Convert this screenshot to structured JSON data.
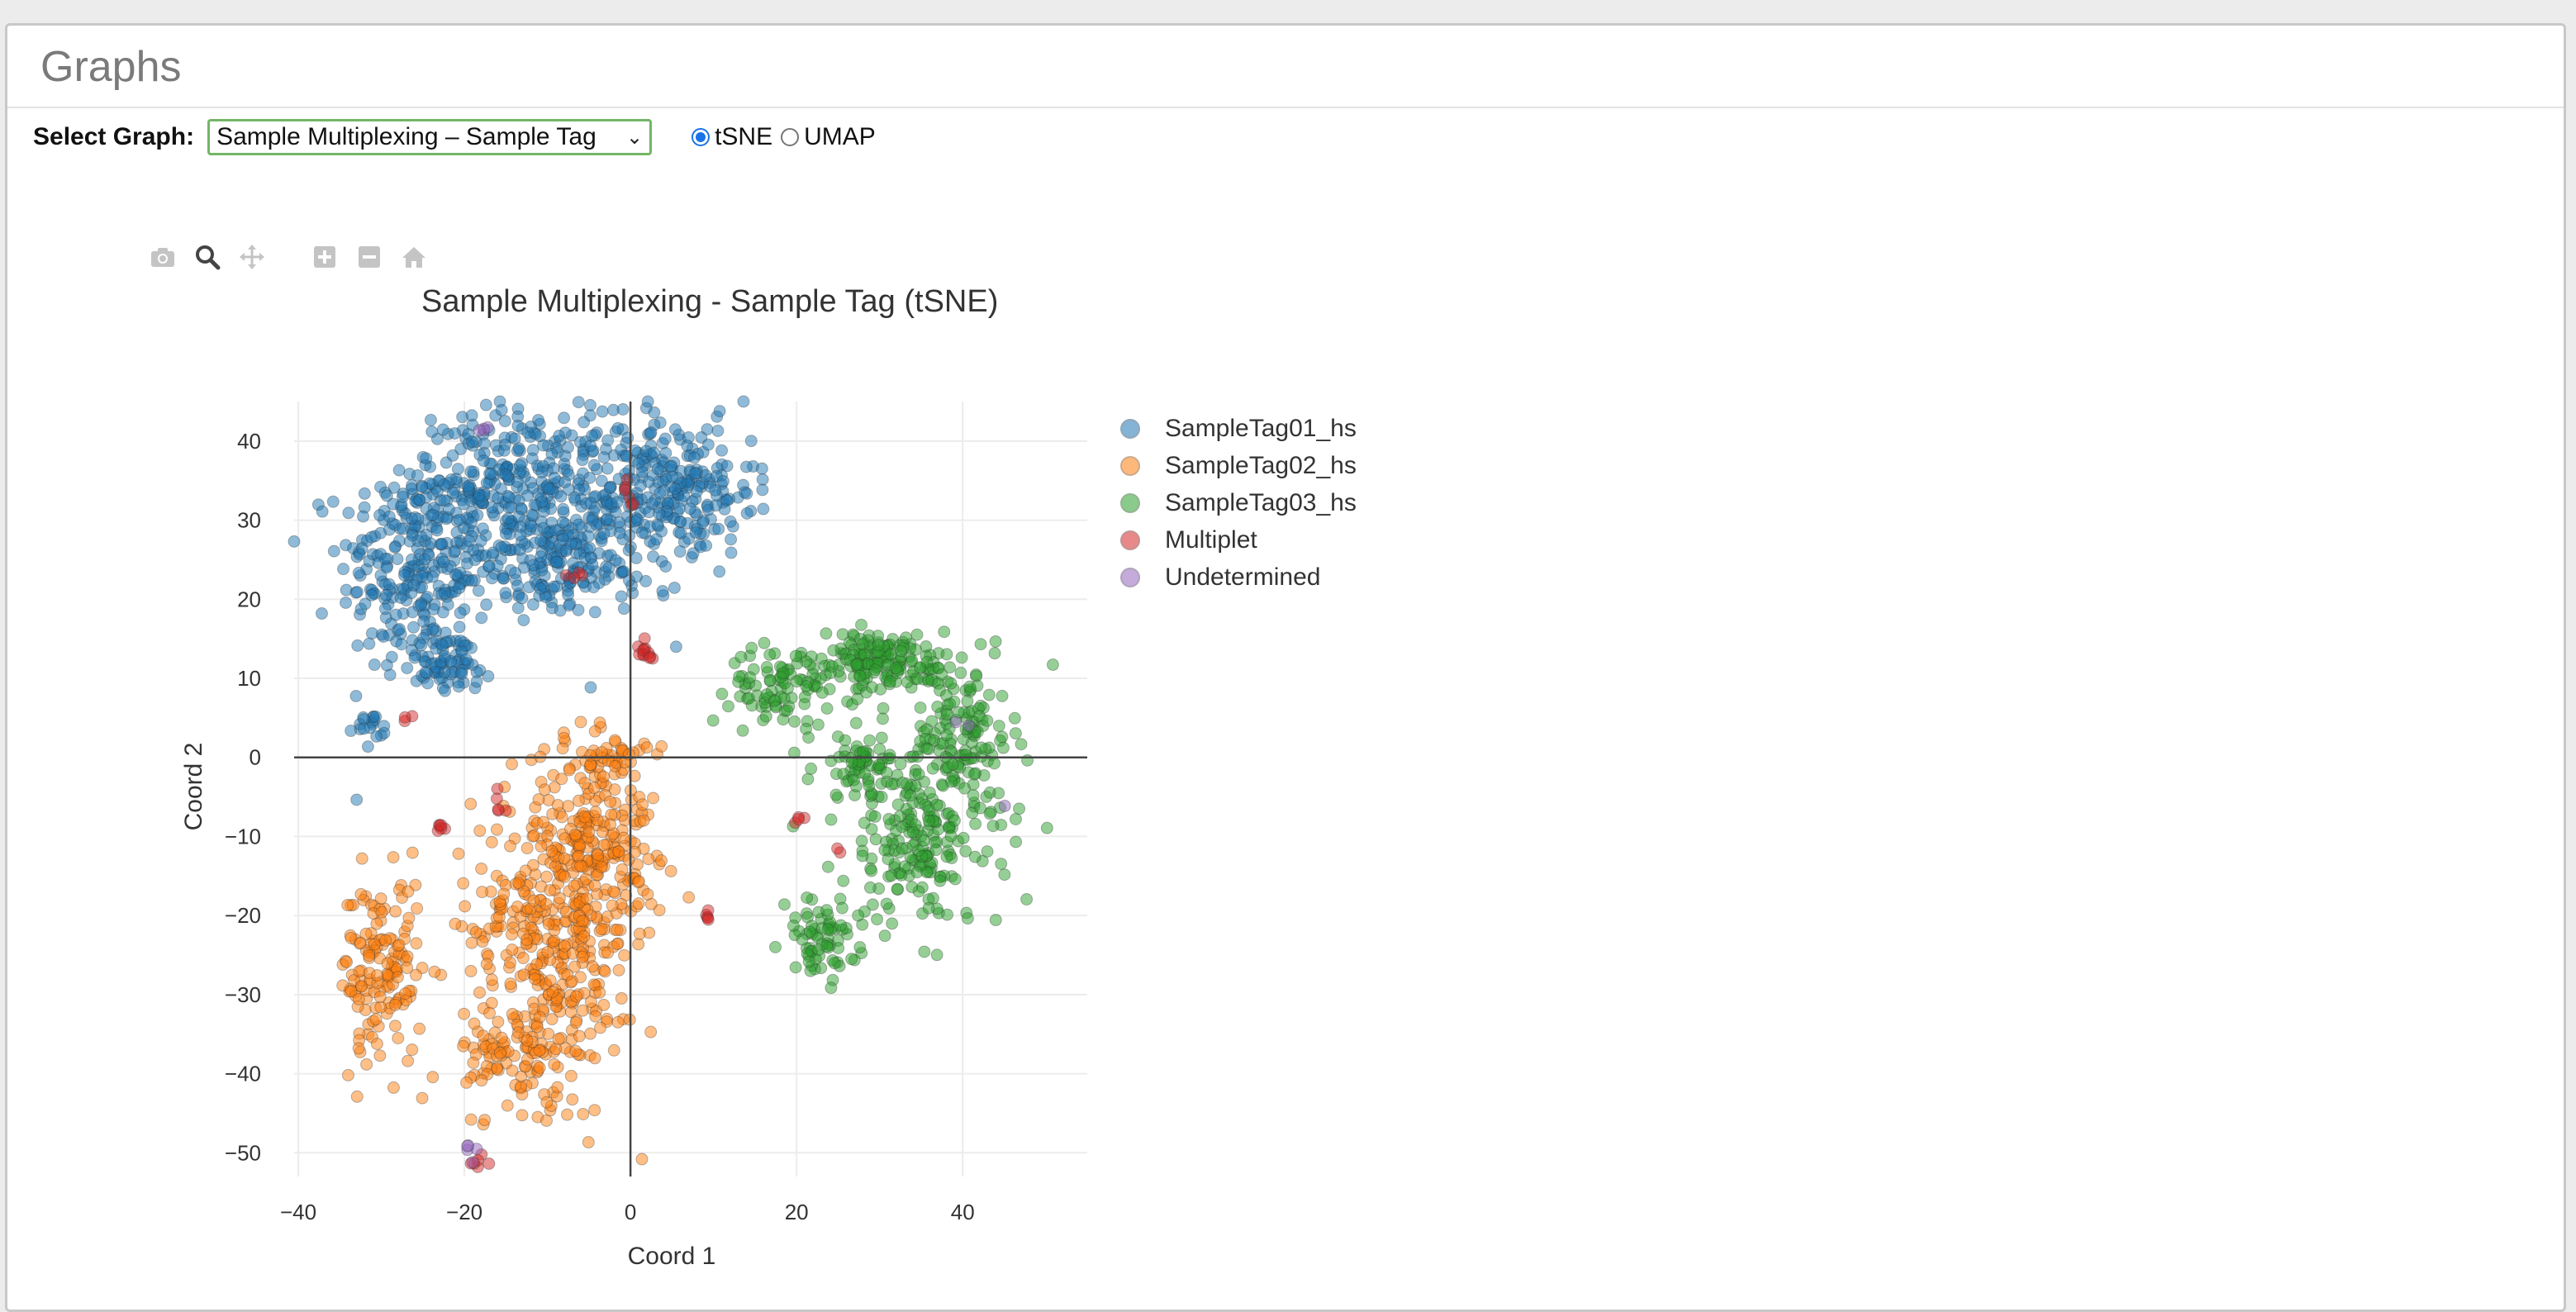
{
  "panel": {
    "title": "Graphs"
  },
  "controls": {
    "select_label": "Select Graph:",
    "selected_graph": "Sample Multiplexing – Sample Tag",
    "radios": [
      {
        "label": "tSNE",
        "checked": true
      },
      {
        "label": "UMAP",
        "checked": false
      }
    ]
  },
  "modebar": [
    "camera-icon",
    "zoom-icon",
    "pan-icon",
    "zoom-in-icon",
    "zoom-out-icon",
    "home-icon"
  ],
  "chart_data": {
    "type": "scatter",
    "title": "Sample Multiplexing - Sample Tag (tSNE)",
    "xlabel": "Coord 1",
    "ylabel": "Coord 2",
    "xlim": [
      -40.5,
      55
    ],
    "ylim": [
      -53,
      45
    ],
    "xticks": [
      -40,
      -20,
      0,
      20,
      40
    ],
    "yticks": [
      -50,
      -40,
      -30,
      -20,
      -10,
      0,
      10,
      20,
      30,
      40
    ],
    "xtick_labels": [
      "−40",
      "−20",
      "0",
      "20",
      "40"
    ],
    "ytick_labels": [
      "−50",
      "−40",
      "−30",
      "−20",
      "−10",
      "0",
      "10",
      "20",
      "30",
      "40"
    ],
    "grid": true,
    "legend_position": "right",
    "series": [
      {
        "name": "SampleTag01_hs",
        "color": "#1f77b4",
        "clusters": [
          {
            "cx": -26,
            "cy": 24,
            "sx": 4.5,
            "sy": 7,
            "n": 260
          },
          {
            "cx": -15,
            "cy": 34,
            "sx": 6,
            "sy": 5,
            "n": 260
          },
          {
            "cx": -2,
            "cy": 32,
            "sx": 5.5,
            "sy": 6,
            "n": 240
          },
          {
            "cx": 7,
            "cy": 34,
            "sx": 4,
            "sy": 4,
            "n": 140
          },
          {
            "cx": -10,
            "cy": 24,
            "sx": 4,
            "sy": 3,
            "n": 120
          },
          {
            "cx": -22,
            "cy": 12,
            "sx": 3,
            "sy": 2,
            "n": 70
          },
          {
            "cx": -31,
            "cy": 3.5,
            "sx": 1,
            "sy": 1,
            "n": 18
          }
        ]
      },
      {
        "name": "SampleTag02_hs",
        "color": "#ff7f0e",
        "clusters": [
          {
            "cx": -9,
            "cy": -22,
            "sx": 5,
            "sy": 10,
            "n": 420
          },
          {
            "cx": -30,
            "cy": -27,
            "sx": 2.5,
            "sy": 6,
            "n": 150
          },
          {
            "cx": -4,
            "cy": -10,
            "sx": 3.5,
            "sy": 5,
            "n": 160
          },
          {
            "cx": -14,
            "cy": -38,
            "sx": 3,
            "sy": 3,
            "n": 70
          },
          {
            "cx": -2,
            "cy": 0,
            "sx": 2,
            "sy": 1.2,
            "n": 40
          }
        ]
      },
      {
        "name": "SampleTag03_hs",
        "color": "#2ca02c",
        "clusters": [
          {
            "cx": 30,
            "cy": 12,
            "sx": 5,
            "sy": 2,
            "n": 180
          },
          {
            "cx": 18,
            "cy": 9,
            "sx": 3,
            "sy": 2.5,
            "n": 80
          },
          {
            "cx": 40,
            "cy": 3,
            "sx": 3,
            "sy": 4,
            "n": 110
          },
          {
            "cx": 35,
            "cy": -10,
            "sx": 5,
            "sy": 6,
            "n": 220
          },
          {
            "cx": 23,
            "cy": -23,
            "sx": 2.2,
            "sy": 2.5,
            "n": 70
          },
          {
            "cx": 28,
            "cy": -1,
            "sx": 3,
            "sy": 2,
            "n": 60
          }
        ]
      },
      {
        "name": "Multiplet",
        "color": "#d62728",
        "clusters": [
          {
            "cx": 1.5,
            "cy": 13,
            "sx": 0.7,
            "sy": 0.8,
            "n": 12
          },
          {
            "cx": -23,
            "cy": -9,
            "sx": 0.6,
            "sy": 0.3,
            "n": 6
          },
          {
            "cx": 9.5,
            "cy": -20,
            "sx": 0.4,
            "sy": 0.4,
            "n": 5
          },
          {
            "cx": 20,
            "cy": -8,
            "sx": 0.5,
            "sy": 0.3,
            "n": 4
          },
          {
            "cx": -16,
            "cy": -6,
            "sx": 0.4,
            "sy": 1,
            "n": 5
          },
          {
            "cx": -27,
            "cy": 5,
            "sx": 0.3,
            "sy": 0.4,
            "n": 3
          },
          {
            "cx": -18,
            "cy": -51,
            "sx": 0.8,
            "sy": 0.6,
            "n": 6
          },
          {
            "cx": 25,
            "cy": -12,
            "sx": 0.3,
            "sy": 0.3,
            "n": 2
          },
          {
            "cx": -6,
            "cy": 23,
            "sx": 0.8,
            "sy": 0.4,
            "n": 4
          },
          {
            "cx": 0,
            "cy": 35,
            "sx": 0.5,
            "sy": 3,
            "n": 6
          }
        ]
      },
      {
        "name": "Undetermined",
        "color": "#9467bd",
        "clusters": [
          {
            "cx": -19,
            "cy": -50,
            "sx": 0.6,
            "sy": 1.2,
            "n": 5
          },
          {
            "cx": -18,
            "cy": 42,
            "sx": 1,
            "sy": 0.6,
            "n": 4
          },
          {
            "cx": 40,
            "cy": 4,
            "sx": 1,
            "sy": 1,
            "n": 2
          },
          {
            "cx": 45,
            "cy": -7,
            "sx": 0.5,
            "sy": 0.5,
            "n": 1
          }
        ]
      }
    ]
  }
}
